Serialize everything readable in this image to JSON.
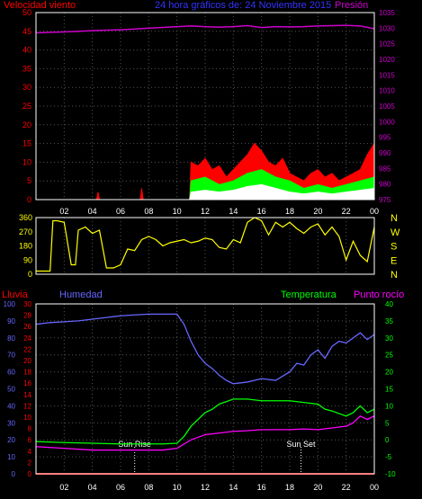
{
  "colors": {
    "wind": "#ff0000",
    "gust_fill": "#00ff00",
    "wind_min": "#ffffff",
    "pressure": "#cc00cc",
    "direction": "#ffff00",
    "rain": "#ff0000",
    "humidity": "#6666ff",
    "temperature": "#00ff00",
    "dewpoint": "#ff00ff",
    "frame": "#ffffff",
    "grid": "#555555",
    "title": "#3333ff"
  },
  "header": {
    "left_label": "Velocidad viento",
    "title": "24 hora gráficos de: 24 Noviembre 2015",
    "right_label": "Presión"
  },
  "x_ticks": [
    "02",
    "04",
    "06",
    "08",
    "10",
    "12",
    "14",
    "16",
    "18",
    "20",
    "22",
    "00"
  ],
  "chart_data": [
    {
      "type": "line",
      "id": "wind",
      "left_axis": {
        "label": "Velocidad viento",
        "min": 0,
        "max": 50,
        "ticks": [
          0,
          5,
          10,
          15,
          20,
          25,
          30,
          35,
          40,
          45,
          50
        ]
      },
      "right_axis": {
        "label": "Presión",
        "min": 975,
        "max": 1035,
        "ticks": [
          975,
          980,
          985,
          990,
          995,
          1000,
          1005,
          1010,
          1015,
          1020,
          1025,
          1030,
          1035
        ]
      },
      "x_range": [
        0,
        24
      ],
      "series": [
        {
          "name": "Presión",
          "axis": "right",
          "x": [
            0,
            2,
            4,
            6,
            8,
            10,
            11,
            12,
            13,
            14,
            15,
            16,
            17,
            18,
            19,
            20,
            21,
            22,
            23,
            24
          ],
          "y": [
            1028.5,
            1028.8,
            1029.2,
            1029.5,
            1030,
            1030.5,
            1030.7,
            1030.5,
            1030.3,
            1030.5,
            1030.8,
            1030.2,
            1030.5,
            1030.4,
            1030.5,
            1030.7,
            1030.8,
            1030.9,
            1030.7,
            1029.8
          ]
        },
        {
          "name": "Racha",
          "axis": "left",
          "x": [
            0,
            4.3,
            4.4,
            4.5,
            7.4,
            7.5,
            7.6,
            10.9,
            11,
            11.5,
            12,
            12.5,
            13,
            13.5,
            14,
            14.5,
            15,
            15.5,
            16,
            16.5,
            17,
            17.5,
            18,
            18.5,
            19,
            19.5,
            20,
            20.5,
            21,
            21.5,
            22,
            22.5,
            23,
            23.5,
            24
          ],
          "y": [
            0,
            0,
            2,
            0,
            0,
            3,
            0,
            0,
            10,
            9,
            11,
            8,
            9,
            6,
            8,
            10,
            12,
            15,
            13,
            10,
            9,
            11,
            7,
            6,
            5,
            7,
            8,
            6,
            7,
            5,
            6,
            7,
            8,
            12,
            15
          ]
        },
        {
          "name": "Velocidad",
          "axis": "left",
          "x": [
            0,
            10.9,
            11,
            12,
            13,
            14,
            15,
            16,
            17,
            18,
            19,
            20,
            21,
            22,
            23,
            24
          ],
          "y": [
            0,
            0,
            5,
            6,
            4,
            5,
            7,
            8,
            6,
            5,
            3,
            4,
            3,
            4,
            5,
            6
          ]
        },
        {
          "name": "Mínimo",
          "axis": "left",
          "x": [
            0,
            10.9,
            11,
            12,
            13,
            14,
            15,
            16,
            17,
            18,
            19,
            20,
            21,
            22,
            23,
            24
          ],
          "y": [
            0,
            0,
            2,
            2.5,
            2,
            2.5,
            3.5,
            4,
            3,
            2,
            1.5,
            2,
            1.5,
            2,
            2.5,
            3
          ]
        }
      ]
    },
    {
      "type": "scatter",
      "id": "direction",
      "left_axis": {
        "min": 0,
        "max": 360,
        "ticks": [
          0,
          90,
          180,
          270,
          360
        ]
      },
      "right_labels": [
        "N",
        "W",
        "S",
        "E",
        "N"
      ],
      "x_range": [
        0,
        24
      ],
      "series": [
        {
          "name": "Dirección",
          "x": [
            0,
            0.5,
            1,
            1.2,
            1.5,
            2,
            2.5,
            2.8,
            3,
            3.5,
            4,
            4.5,
            5,
            5.5,
            6,
            6.5,
            7,
            7.5,
            8,
            8.5,
            9,
            9.5,
            10,
            10.5,
            11,
            11.5,
            12,
            12.5,
            13,
            13.5,
            14,
            14.5,
            15,
            15.5,
            16,
            16.5,
            17,
            17.5,
            18,
            18.5,
            19,
            19.5,
            20,
            20.5,
            21,
            21.5,
            22,
            22.5,
            23,
            23.5,
            24
          ],
          "y": [
            20,
            20,
            20,
            340,
            340,
            330,
            60,
            60,
            280,
            300,
            260,
            280,
            40,
            40,
            60,
            160,
            150,
            220,
            240,
            220,
            180,
            200,
            210,
            220,
            200,
            210,
            230,
            220,
            170,
            160,
            220,
            200,
            330,
            360,
            340,
            250,
            330,
            300,
            330,
            290,
            260,
            300,
            320,
            250,
            300,
            240,
            90,
            210,
            120,
            80,
            300
          ]
        }
      ]
    },
    {
      "type": "line",
      "id": "climate",
      "labels": {
        "rain": "Lluvia",
        "humidity": "Humedad",
        "temperature": "Temperatura",
        "dewpoint": "Punto rocío"
      },
      "humidity_axis": {
        "min": 0,
        "max": 100,
        "ticks": [
          0,
          10,
          20,
          30,
          40,
          50,
          60,
          70,
          80,
          90,
          100
        ]
      },
      "rain_axis": {
        "min": 0,
        "max": 30,
        "ticks": [
          0,
          2,
          4,
          6,
          8,
          10,
          12,
          14,
          16,
          18,
          20,
          22,
          24,
          26,
          28,
          30
        ]
      },
      "temp_axis": {
        "min": -10,
        "max": 40,
        "ticks": [
          -10,
          -5,
          0,
          5,
          10,
          15,
          20,
          25,
          30,
          35,
          40
        ]
      },
      "x_range": [
        0,
        24
      ],
      "annotations": [
        {
          "label": "Sun Rise",
          "x": 7.0
        },
        {
          "label": "Sun Set",
          "x": 18.8
        }
      ],
      "series": [
        {
          "name": "Humedad",
          "axis": "humidity",
          "x": [
            0,
            1,
            2,
            3,
            4,
            5,
            6,
            7,
            8,
            9,
            10,
            10.5,
            11,
            11.5,
            12,
            12.5,
            13,
            13.5,
            14,
            15,
            16,
            17,
            18,
            18.5,
            19,
            19.5,
            20,
            20.5,
            21,
            21.5,
            22,
            22.5,
            23,
            23.5,
            24
          ],
          "y": [
            88,
            89,
            89.5,
            90,
            91,
            92,
            93,
            93.5,
            94,
            94,
            94,
            88,
            78,
            70,
            65,
            62,
            58,
            55,
            53,
            54,
            56,
            55,
            60,
            65,
            64,
            70,
            73,
            68,
            75,
            78,
            77,
            80,
            83,
            79,
            82
          ]
        },
        {
          "name": "Temperatura",
          "axis": "temp",
          "x": [
            0,
            2,
            4,
            6,
            8,
            9,
            10,
            10.5,
            11,
            11.5,
            12,
            12.5,
            13,
            14,
            15,
            16,
            17,
            18,
            19,
            20,
            20.5,
            21,
            22,
            22.5,
            23,
            23.5,
            24
          ],
          "y": [
            -0.5,
            -0.8,
            -1,
            -1.2,
            -1.2,
            -1.2,
            -1.0,
            1,
            4,
            6,
            8,
            9,
            10.5,
            12,
            12,
            11.5,
            11.5,
            11.5,
            11,
            10.5,
            9,
            8.5,
            7,
            8,
            10,
            8,
            9
          ]
        },
        {
          "name": "Punto rocío",
          "axis": "temp",
          "x": [
            0,
            2,
            4,
            6,
            8,
            9,
            10,
            11,
            12,
            13,
            14,
            15,
            16,
            17,
            18,
            19,
            20,
            21,
            22,
            22.5,
            23,
            23.5,
            24
          ],
          "y": [
            -2,
            -2.5,
            -3,
            -3,
            -3,
            -3,
            -2.5,
            0,
            1.5,
            2,
            2.5,
            2.7,
            3,
            3,
            3,
            3.2,
            3,
            3.5,
            4,
            5,
            7,
            6,
            7
          ]
        },
        {
          "name": "Lluvia",
          "axis": "rain",
          "x": [
            0,
            24
          ],
          "y": [
            0,
            0
          ]
        }
      ]
    }
  ]
}
